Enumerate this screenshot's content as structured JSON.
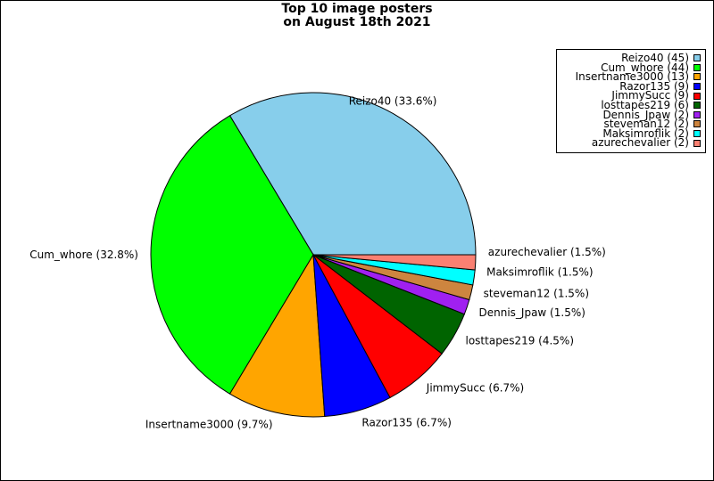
{
  "chart_data": {
    "type": "pie",
    "title_lines": [
      "Top 10 image posters",
      "on August 18th 2021"
    ],
    "slices": [
      {
        "name": "Reizo40",
        "value": 45,
        "pct_label": "Reizo40 (33.6%)",
        "legend_label": "Reizo40 (45)",
        "color": "#87ceeb"
      },
      {
        "name": "Cum_whore",
        "value": 44,
        "pct_label": "Cum_whore (32.8%)",
        "legend_label": "Cum_whore (44)",
        "color": "#00ff00"
      },
      {
        "name": "Insertname3000",
        "value": 13,
        "pct_label": "Insertname3000 (9.7%)",
        "legend_label": "Insertname3000 (13)",
        "color": "#ffa500"
      },
      {
        "name": "Razor135",
        "value": 9,
        "pct_label": "Razor135 (6.7%)",
        "legend_label": "Razor135 (9)",
        "color": "#0000ff"
      },
      {
        "name": "JimmySucc",
        "value": 9,
        "pct_label": "JimmySucc (6.7%)",
        "legend_label": "JimmySucc (9)",
        "color": "#ff0000"
      },
      {
        "name": "losttapes219",
        "value": 6,
        "pct_label": "losttapes219 (4.5%)",
        "legend_label": "losttapes219 (6)",
        "color": "#006400"
      },
      {
        "name": "Dennis_Jpaw",
        "value": 2,
        "pct_label": "Dennis_Jpaw (1.5%)",
        "legend_label": "Dennis_Jpaw (2)",
        "color": "#a020f0"
      },
      {
        "name": "steveman12",
        "value": 2,
        "pct_label": "steveman12 (1.5%)",
        "legend_label": "steveman12 (2)",
        "color": "#cd853f"
      },
      {
        "name": "Maksimroflik",
        "value": 2,
        "pct_label": "Maksimroflik (1.5%)",
        "legend_label": "Maksimroflik (2)",
        "color": "#00ffff"
      },
      {
        "name": "azurechevalier",
        "value": 2,
        "pct_label": "azurechevalier (1.5%)",
        "legend_label": "azurechevalier (2)",
        "color": "#fa8072"
      }
    ],
    "start_angle_deg": 0,
    "direction": "counterclockwise",
    "legend_position": "top-right"
  }
}
